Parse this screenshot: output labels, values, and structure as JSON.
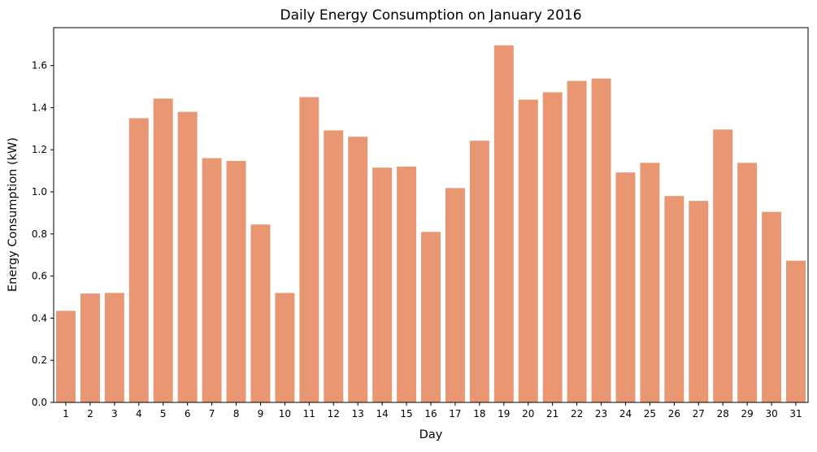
{
  "chart_data": {
    "type": "bar",
    "title": "Daily Energy Consumption on January 2016",
    "xlabel": "Day",
    "ylabel": "Energy Consumption (kW)",
    "categories": [
      "1",
      "2",
      "3",
      "4",
      "5",
      "6",
      "7",
      "8",
      "9",
      "10",
      "11",
      "12",
      "13",
      "14",
      "15",
      "16",
      "17",
      "18",
      "19",
      "20",
      "21",
      "22",
      "23",
      "24",
      "25",
      "26",
      "27",
      "28",
      "29",
      "30",
      "31"
    ],
    "values": [
      0.435,
      0.517,
      0.52,
      1.35,
      1.443,
      1.38,
      1.16,
      1.147,
      0.845,
      0.52,
      1.45,
      1.292,
      1.262,
      1.115,
      1.12,
      0.81,
      1.018,
      1.243,
      1.696,
      1.438,
      1.473,
      1.527,
      1.538,
      1.092,
      1.138,
      0.98,
      0.957,
      1.296,
      1.138,
      0.905,
      0.673
    ],
    "ylim": [
      0,
      1.78
    ],
    "yticks": [
      "0.0",
      "0.2",
      "0.4",
      "0.6",
      "0.8",
      "1.0",
      "1.2",
      "1.4",
      "1.6"
    ],
    "grid": false,
    "legend": "none",
    "bar_color": "#e99672"
  }
}
